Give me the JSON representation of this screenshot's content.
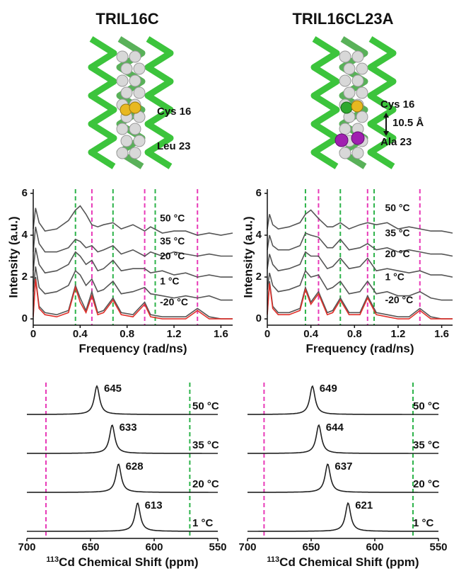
{
  "structures": [
    {
      "title": "TRIL16C",
      "labels": [
        "Cys 16",
        "Leu 23"
      ]
    },
    {
      "title": "TRIL16CL23A",
      "labels": [
        "Cys 16",
        "10.5 Å",
        "Ala 23"
      ]
    }
  ],
  "chart_data": [
    {
      "type": "spectrum",
      "xlabel": "Frequency (rad/ns)",
      "ylabel": "Intensity (a.u.)",
      "xlim": [
        0,
        1.7
      ],
      "ylim": [
        -0.3,
        6.2
      ],
      "xticks": [
        0,
        0.4,
        0.8,
        1.2,
        1.6
      ],
      "yticks": [
        0,
        2,
        4,
        6
      ],
      "vlines": [
        {
          "x": 0.36,
          "color": "#2db34a"
        },
        {
          "x": 0.68,
          "color": "#2db34a"
        },
        {
          "x": 1.04,
          "color": "#2db34a"
        },
        {
          "x": 0.5,
          "color": "#e83ab8"
        },
        {
          "x": 0.95,
          "color": "#e83ab8"
        },
        {
          "x": 1.4,
          "color": "#e83ab8"
        }
      ],
      "x": [
        0,
        0.02,
        0.05,
        0.1,
        0.2,
        0.3,
        0.36,
        0.4,
        0.45,
        0.5,
        0.55,
        0.6,
        0.68,
        0.75,
        0.85,
        0.95,
        1.0,
        1.1,
        1.2,
        1.3,
        1.4,
        1.5,
        1.6,
        1.7
      ],
      "series": [
        {
          "name": "50 °C",
          "color": "#555555",
          "values": [
            4.3,
            5.3,
            4.6,
            4.2,
            4.3,
            4.7,
            5.2,
            5.4,
            5.0,
            4.5,
            4.4,
            4.5,
            4.6,
            4.3,
            4.5,
            4.2,
            4.4,
            4.1,
            4.2,
            4.2,
            4.0,
            4.1,
            4.0,
            4.1
          ]
        },
        {
          "name": "35 °C",
          "color": "#555555",
          "values": [
            3.2,
            4.4,
            3.6,
            3.2,
            3.2,
            3.4,
            3.8,
            3.7,
            3.4,
            3.5,
            3.2,
            3.3,
            3.5,
            3.1,
            3.3,
            3.0,
            3.2,
            3.0,
            3.2,
            3.1,
            3.0,
            3.1,
            3.0,
            3.0
          ]
        },
        {
          "name": "20 °C",
          "color": "#555555",
          "values": [
            2.3,
            3.4,
            2.6,
            2.2,
            2.3,
            2.6,
            3.2,
            3.0,
            2.6,
            2.8,
            2.3,
            2.4,
            2.8,
            2.3,
            2.4,
            2.4,
            2.2,
            2.3,
            2.1,
            2.2,
            2.0,
            2.1,
            2.0,
            2.0
          ]
        },
        {
          "name": "1 °C",
          "color": "#555555",
          "values": [
            1.3,
            2.5,
            1.5,
            1.2,
            1.3,
            1.6,
            2.3,
            2.1,
            1.6,
            1.9,
            1.3,
            1.4,
            1.8,
            1.2,
            1.3,
            1.5,
            1.2,
            1.1,
            1.0,
            1.1,
            1.0,
            1.1,
            0.9,
            0.9
          ]
        },
        {
          "name": "-20 °C",
          "color": "#555555",
          "values": [
            0.2,
            2.0,
            0.6,
            0.3,
            0.2,
            0.4,
            1.6,
            1.0,
            0.4,
            1.3,
            0.3,
            0.4,
            1.0,
            0.3,
            0.2,
            0.8,
            0.2,
            0.1,
            0.1,
            0.1,
            0.5,
            0.1,
            0.0,
            0.0
          ]
        },
        {
          "color": "#e0302a",
          "values": [
            0.1,
            1.9,
            0.5,
            0.2,
            0.1,
            0.3,
            1.5,
            0.8,
            0.3,
            1.1,
            0.2,
            0.3,
            0.9,
            0.2,
            0.1,
            0.7,
            0.1,
            0.0,
            0.0,
            0.0,
            0.4,
            0.0,
            0.0,
            0.0
          ]
        }
      ]
    },
    {
      "type": "spectrum",
      "xlabel": "Frequency (rad/ns)",
      "ylabel": "Intensity (a.u.)",
      "xlim": [
        0,
        1.7
      ],
      "ylim": [
        -0.3,
        6.2
      ],
      "xticks": [
        0,
        0.4,
        0.8,
        1.2,
        1.6
      ],
      "yticks": [
        0,
        2,
        4,
        6
      ],
      "vlines": [
        {
          "x": 0.35,
          "color": "#2db34a"
        },
        {
          "x": 0.67,
          "color": "#2db34a"
        },
        {
          "x": 0.98,
          "color": "#2db34a"
        },
        {
          "x": 0.47,
          "color": "#e83ab8"
        },
        {
          "x": 0.92,
          "color": "#e83ab8"
        },
        {
          "x": 1.4,
          "color": "#e83ab8"
        }
      ],
      "x": [
        0,
        0.02,
        0.05,
        0.1,
        0.2,
        0.3,
        0.35,
        0.4,
        0.47,
        0.55,
        0.6,
        0.67,
        0.75,
        0.85,
        0.92,
        1.0,
        1.1,
        1.2,
        1.3,
        1.4,
        1.5,
        1.6,
        1.7
      ],
      "series": [
        {
          "name": "50 °C",
          "color": "#555555",
          "values": [
            4.3,
            5.0,
            4.5,
            4.3,
            4.4,
            4.6,
            5.0,
            5.2,
            4.8,
            4.4,
            4.4,
            4.6,
            4.3,
            4.5,
            4.6,
            4.5,
            4.6,
            4.3,
            4.4,
            4.3,
            4.2,
            4.2,
            4.1
          ]
        },
        {
          "name": "35 °C",
          "color": "#555555",
          "values": [
            3.3,
            4.0,
            3.5,
            3.3,
            3.3,
            3.5,
            4.1,
            4.0,
            3.9,
            3.4,
            3.4,
            3.8,
            3.3,
            3.4,
            3.6,
            3.3,
            3.4,
            3.2,
            3.3,
            3.2,
            3.1,
            3.1,
            3.0
          ]
        },
        {
          "name": "20 °C",
          "color": "#555555",
          "values": [
            2.4,
            3.1,
            2.6,
            2.3,
            2.4,
            2.6,
            3.2,
            3.0,
            3.0,
            2.4,
            2.5,
            2.9,
            2.4,
            2.5,
            2.9,
            2.3,
            2.4,
            2.3,
            2.2,
            2.3,
            2.1,
            2.1,
            2.0
          ]
        },
        {
          "name": "1 °C",
          "color": "#555555",
          "values": [
            1.4,
            2.2,
            1.6,
            1.3,
            1.4,
            1.6,
            2.3,
            2.0,
            2.1,
            1.4,
            1.5,
            1.8,
            1.2,
            1.3,
            1.8,
            1.2,
            1.3,
            1.1,
            1.1,
            1.3,
            1.0,
            0.9,
            0.9
          ]
        },
        {
          "name": "-20 °C",
          "color": "#555555",
          "values": [
            0.3,
            1.8,
            0.6,
            0.3,
            0.3,
            0.5,
            1.5,
            0.8,
            1.3,
            0.3,
            0.4,
            1.0,
            0.3,
            0.3,
            1.1,
            0.3,
            0.2,
            0.1,
            0.1,
            0.5,
            0.1,
            0.0,
            0.0
          ]
        },
        {
          "color": "#e0302a",
          "values": [
            0.2,
            1.7,
            0.5,
            0.2,
            0.2,
            0.4,
            1.4,
            0.7,
            1.2,
            0.2,
            0.3,
            0.9,
            0.2,
            0.2,
            1.0,
            0.2,
            0.1,
            0.0,
            0.0,
            0.4,
            0.0,
            0.0,
            0.0
          ]
        }
      ]
    },
    {
      "type": "nmr",
      "xlabel_sup": "113",
      "xlabel": "Cd Chemical Shift (ppm)",
      "xlim": [
        700,
        550
      ],
      "xticks": [
        700,
        650,
        600,
        550
      ],
      "vlines": [
        {
          "x": 685,
          "color": "#e83ab8"
        },
        {
          "x": 572,
          "color": "#2db34a"
        }
      ],
      "series": [
        {
          "name": "50 °C",
          "color": "#222222",
          "peak": 645
        },
        {
          "name": "35 °C",
          "color": "#222222",
          "peak": 633
        },
        {
          "name": "20 °C",
          "color": "#222222",
          "peak": 628
        },
        {
          "name": "1 °C",
          "color": "#222222",
          "peak": 613
        }
      ]
    },
    {
      "type": "nmr",
      "xlabel_sup": "113",
      "xlabel": "Cd Chemical Shift (ppm)",
      "xlim": [
        700,
        550
      ],
      "xticks": [
        700,
        650,
        600,
        550
      ],
      "vlines": [
        {
          "x": 687,
          "color": "#e83ab8"
        },
        {
          "x": 570,
          "color": "#2db34a"
        }
      ],
      "series": [
        {
          "name": "50 °C",
          "color": "#222222",
          "peak": 649
        },
        {
          "name": "35 °C",
          "color": "#222222",
          "peak": 644
        },
        {
          "name": "20 °C",
          "color": "#222222",
          "peak": 637
        },
        {
          "name": "1 °C",
          "color": "#222222",
          "peak": 621
        }
      ]
    }
  ]
}
